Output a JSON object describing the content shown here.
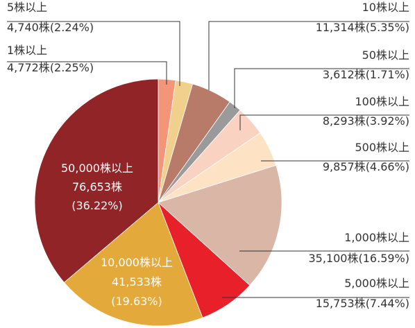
{
  "chart_data": {
    "type": "pie",
    "categories": [
      "1株以上",
      "5株以上",
      "10株以上",
      "50株以上",
      "100株以上",
      "500株以上",
      "1,000株以上",
      "5,000株以上",
      "10,000株以上",
      "50,000株以上"
    ],
    "values": [
      4772,
      4740,
      11314,
      3612,
      8293,
      9857,
      35100,
      15753,
      41533,
      76653
    ],
    "value_labels": [
      "4,772株",
      "4,740株",
      "11,314株",
      "3,612株",
      "8,293株",
      "9,857株",
      "35,100株",
      "15,753株",
      "41,533株",
      "76,653株"
    ],
    "percent_labels": [
      "(2.25%)",
      "(2.24%)",
      "(5.35%)",
      "(1.71%)",
      "(3.92%)",
      "(4.66%)",
      "(16.59%)",
      "(7.44%)",
      "(19.63%)",
      "(36.22%)"
    ],
    "colors": [
      "#f29579",
      "#f1d08e",
      "#b97b69",
      "#9a9a9a",
      "#f9d2c2",
      "#fde2c4",
      "#d9b6a5",
      "#e8202a",
      "#e3a93a",
      "#912426"
    ]
  }
}
